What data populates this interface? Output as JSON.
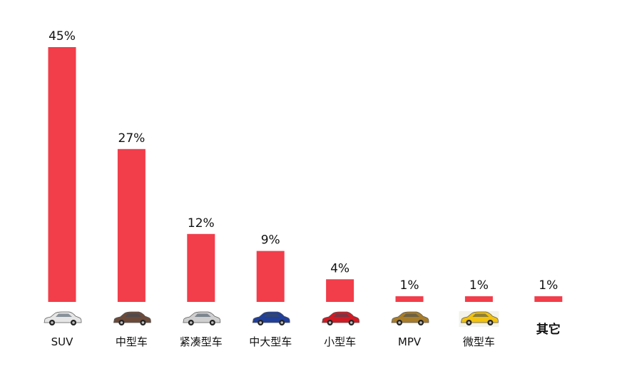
{
  "chart_data": {
    "type": "bar",
    "title": "",
    "xlabel": "",
    "ylabel": "",
    "ylim": [
      0,
      45
    ],
    "grid": false,
    "categories": [
      "SUV",
      "中型车",
      "紧凑型车",
      "中大型车",
      "小型车",
      "MPV",
      "微型车",
      "其它"
    ],
    "values": [
      45,
      27,
      12,
      9,
      4,
      1,
      1,
      1
    ],
    "value_labels": [
      "45%",
      "27%",
      "12%",
      "9%",
      "4%",
      "1%",
      "1%",
      "1%"
    ],
    "category_icons": [
      "car-white-suv-icon",
      "car-brown-sedan-icon",
      "car-silver-sedan-icon",
      "car-blue-sedan-icon",
      "car-red-hatchback-icon",
      "car-gold-mpv-icon",
      "car-yellow-mini-icon",
      ""
    ],
    "icon_colors": [
      "#e6e6e6",
      "#6b4a3a",
      "#cfcfcf",
      "#1f3f9a",
      "#d11a24",
      "#a87d2a",
      "#f2c20d",
      ""
    ],
    "bar_color": "#f23d4a"
  }
}
